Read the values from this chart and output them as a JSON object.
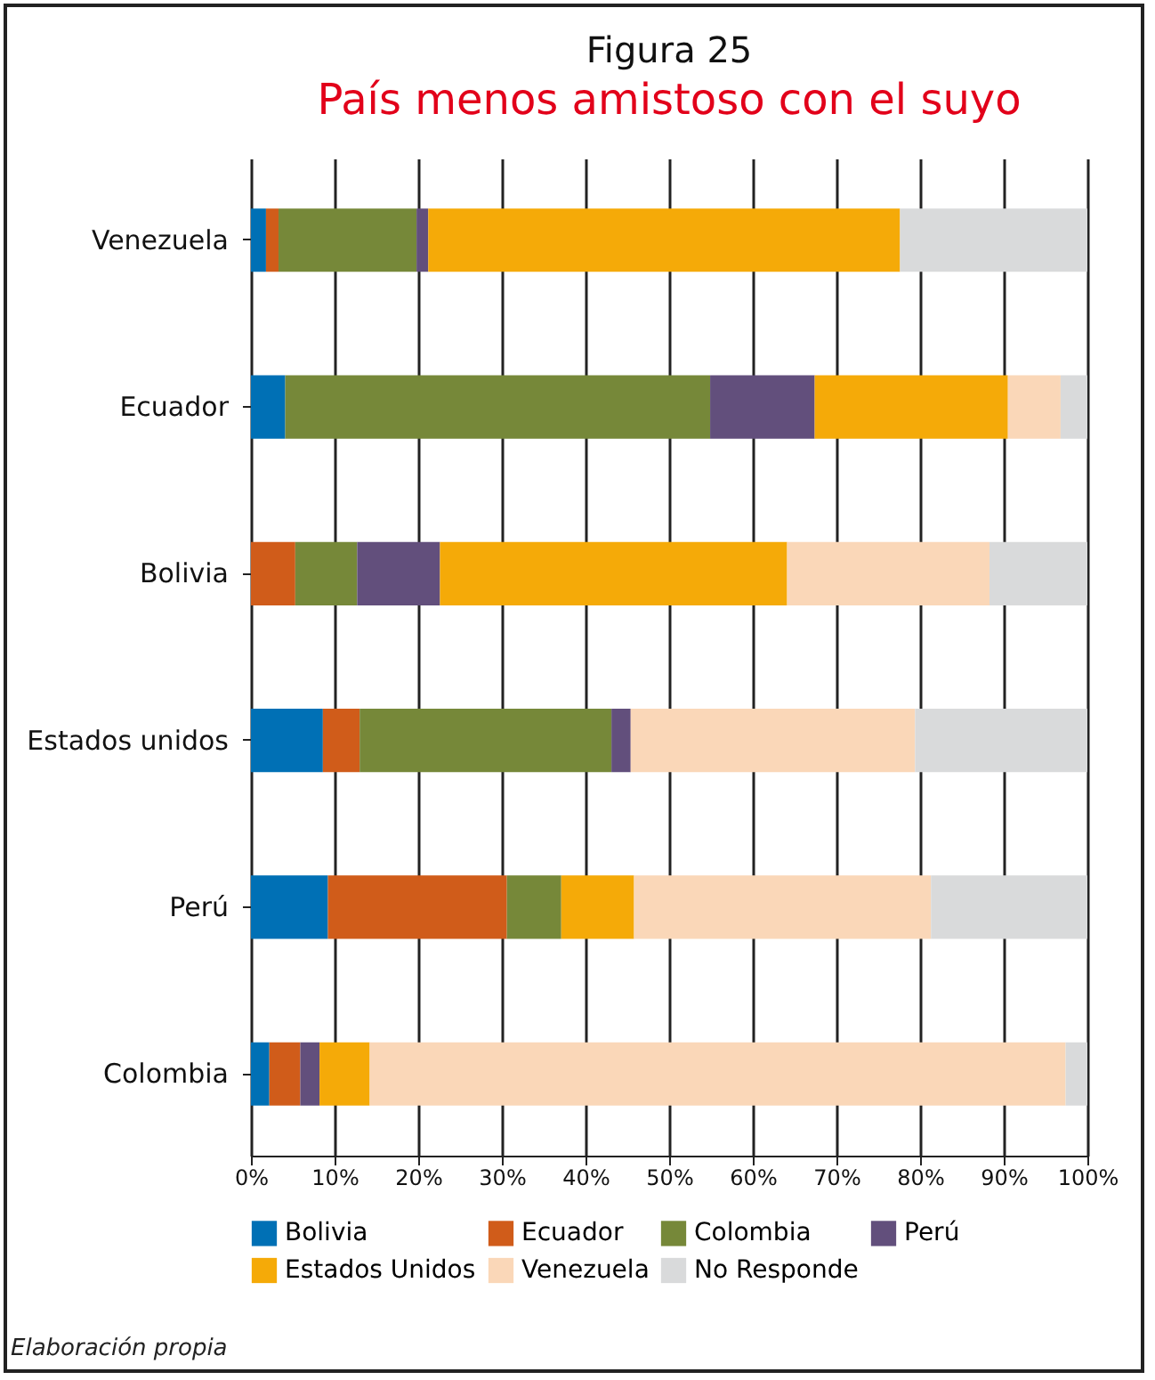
{
  "chart_data": {
    "type": "bar",
    "orientation": "horizontal",
    "stacked": true,
    "title": "Figura 25",
    "subtitle": "País menos amistoso con el suyo",
    "categories": [
      "Venezuela",
      "Ecuador",
      "Bolivia",
      "Estados unidos",
      "Perú",
      "Colombia"
    ],
    "series": [
      {
        "name": "Bolivia",
        "color": "#0070b5",
        "values": [
          1.8,
          4.1,
          0,
          8.6,
          9.2,
          2.2
        ]
      },
      {
        "name": "Ecuador",
        "color": "#d05c1a",
        "values": [
          1.5,
          0,
          5.3,
          4.4,
          21.4,
          3.7
        ]
      },
      {
        "name": "Colombia",
        "color": "#768839",
        "values": [
          16.5,
          50.8,
          7.4,
          30.1,
          6.5,
          0
        ]
      },
      {
        "name": "Perú",
        "color": "#624f7c",
        "values": [
          1.4,
          12.5,
          9.9,
          2.3,
          0,
          2.3
        ]
      },
      {
        "name": "Estados Unidos",
        "color": "#f5aa08",
        "values": [
          56.4,
          23.1,
          41.5,
          0,
          8.7,
          6.0
        ]
      },
      {
        "name": "Venezuela",
        "color": "#fad7b8",
        "values": [
          0,
          6.3,
          24.2,
          34.0,
          35.5,
          83.2
        ]
      },
      {
        "name": "No Responde",
        "color": "#d9dadb",
        "values": [
          22.4,
          3.2,
          11.7,
          20.6,
          18.7,
          2.6
        ]
      }
    ],
    "xlim": [
      0,
      100
    ],
    "xticks": [
      {
        "value": 0,
        "label": "0%"
      },
      {
        "value": 10,
        "label": "10%"
      },
      {
        "value": 20,
        "label": "20%"
      },
      {
        "value": 30,
        "label": "30%"
      },
      {
        "value": 40,
        "label": "40%"
      },
      {
        "value": 50,
        "label": "50%"
      },
      {
        "value": 60,
        "label": "60%"
      },
      {
        "value": 70,
        "label": "70%"
      },
      {
        "value": 80,
        "label": "80%"
      },
      {
        "value": 90,
        "label": "90%"
      },
      {
        "value": 100,
        "label": "100%"
      }
    ],
    "grid": "x",
    "legend": "bottom",
    "annotations": [
      "Elaboración propia"
    ]
  }
}
